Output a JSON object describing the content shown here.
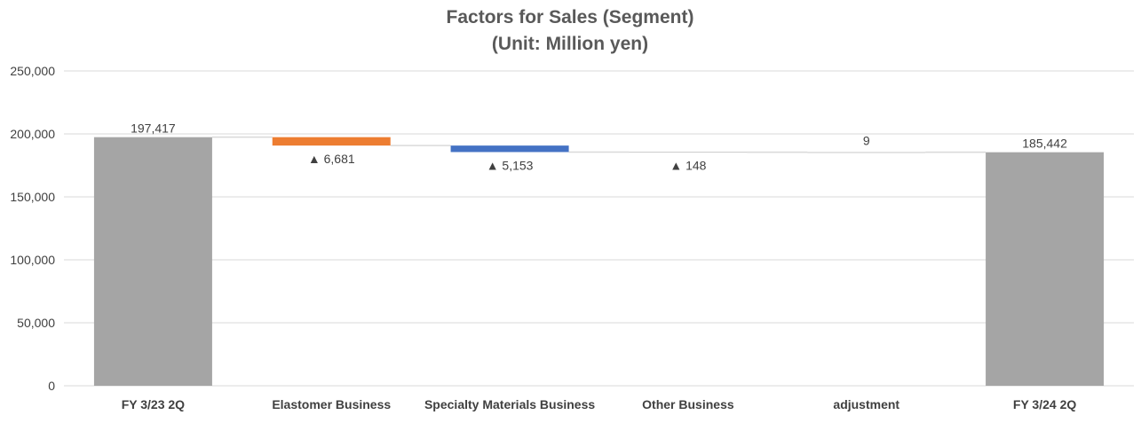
{
  "chart_data": {
    "type": "waterfall",
    "title": "Factors for Sales (Segment)",
    "subtitle": "(Unit: Million yen)",
    "xlabel": "",
    "ylabel": "",
    "ylim": [
      0,
      250000
    ],
    "yticks": [
      0,
      50000,
      100000,
      150000,
      200000,
      250000
    ],
    "ytick_labels": [
      "0",
      "50,000",
      "100,000",
      "150,000",
      "200,000",
      "250,000"
    ],
    "grid": true,
    "legend": "none",
    "categories": [
      "FY 3/23 2Q",
      "Elastomer Business",
      "Specialty Materials Business",
      "Other Business",
      "adjustment",
      "FY 3/24 2Q"
    ],
    "steps": [
      {
        "category": "FY 3/23 2Q",
        "kind": "total",
        "value": 197417,
        "label": "197,417",
        "color": "#a5a5a5"
      },
      {
        "category": "Elastomer Business",
        "kind": "delta",
        "value": -6681,
        "label": "▲ 6,681",
        "color": "#ed7d31"
      },
      {
        "category": "Specialty Materials Business",
        "kind": "delta",
        "value": -5153,
        "label": "▲ 5,153",
        "color": "#4472c4"
      },
      {
        "category": "Other Business",
        "kind": "delta",
        "value": -148,
        "label": "▲ 148",
        "color": "#a5a5a5"
      },
      {
        "category": "adjustment",
        "kind": "delta",
        "value": 9,
        "label": "9",
        "color": "#a5a5a5"
      },
      {
        "category": "FY 3/24 2Q",
        "kind": "total",
        "value": 185442,
        "label": "185,442",
        "color": "#a5a5a5"
      }
    ],
    "colors": {
      "total": "#a5a5a5",
      "connector": "#d9d9d9",
      "grid": "#d9d9d9",
      "text": "#404040",
      "title": "#595959"
    }
  }
}
